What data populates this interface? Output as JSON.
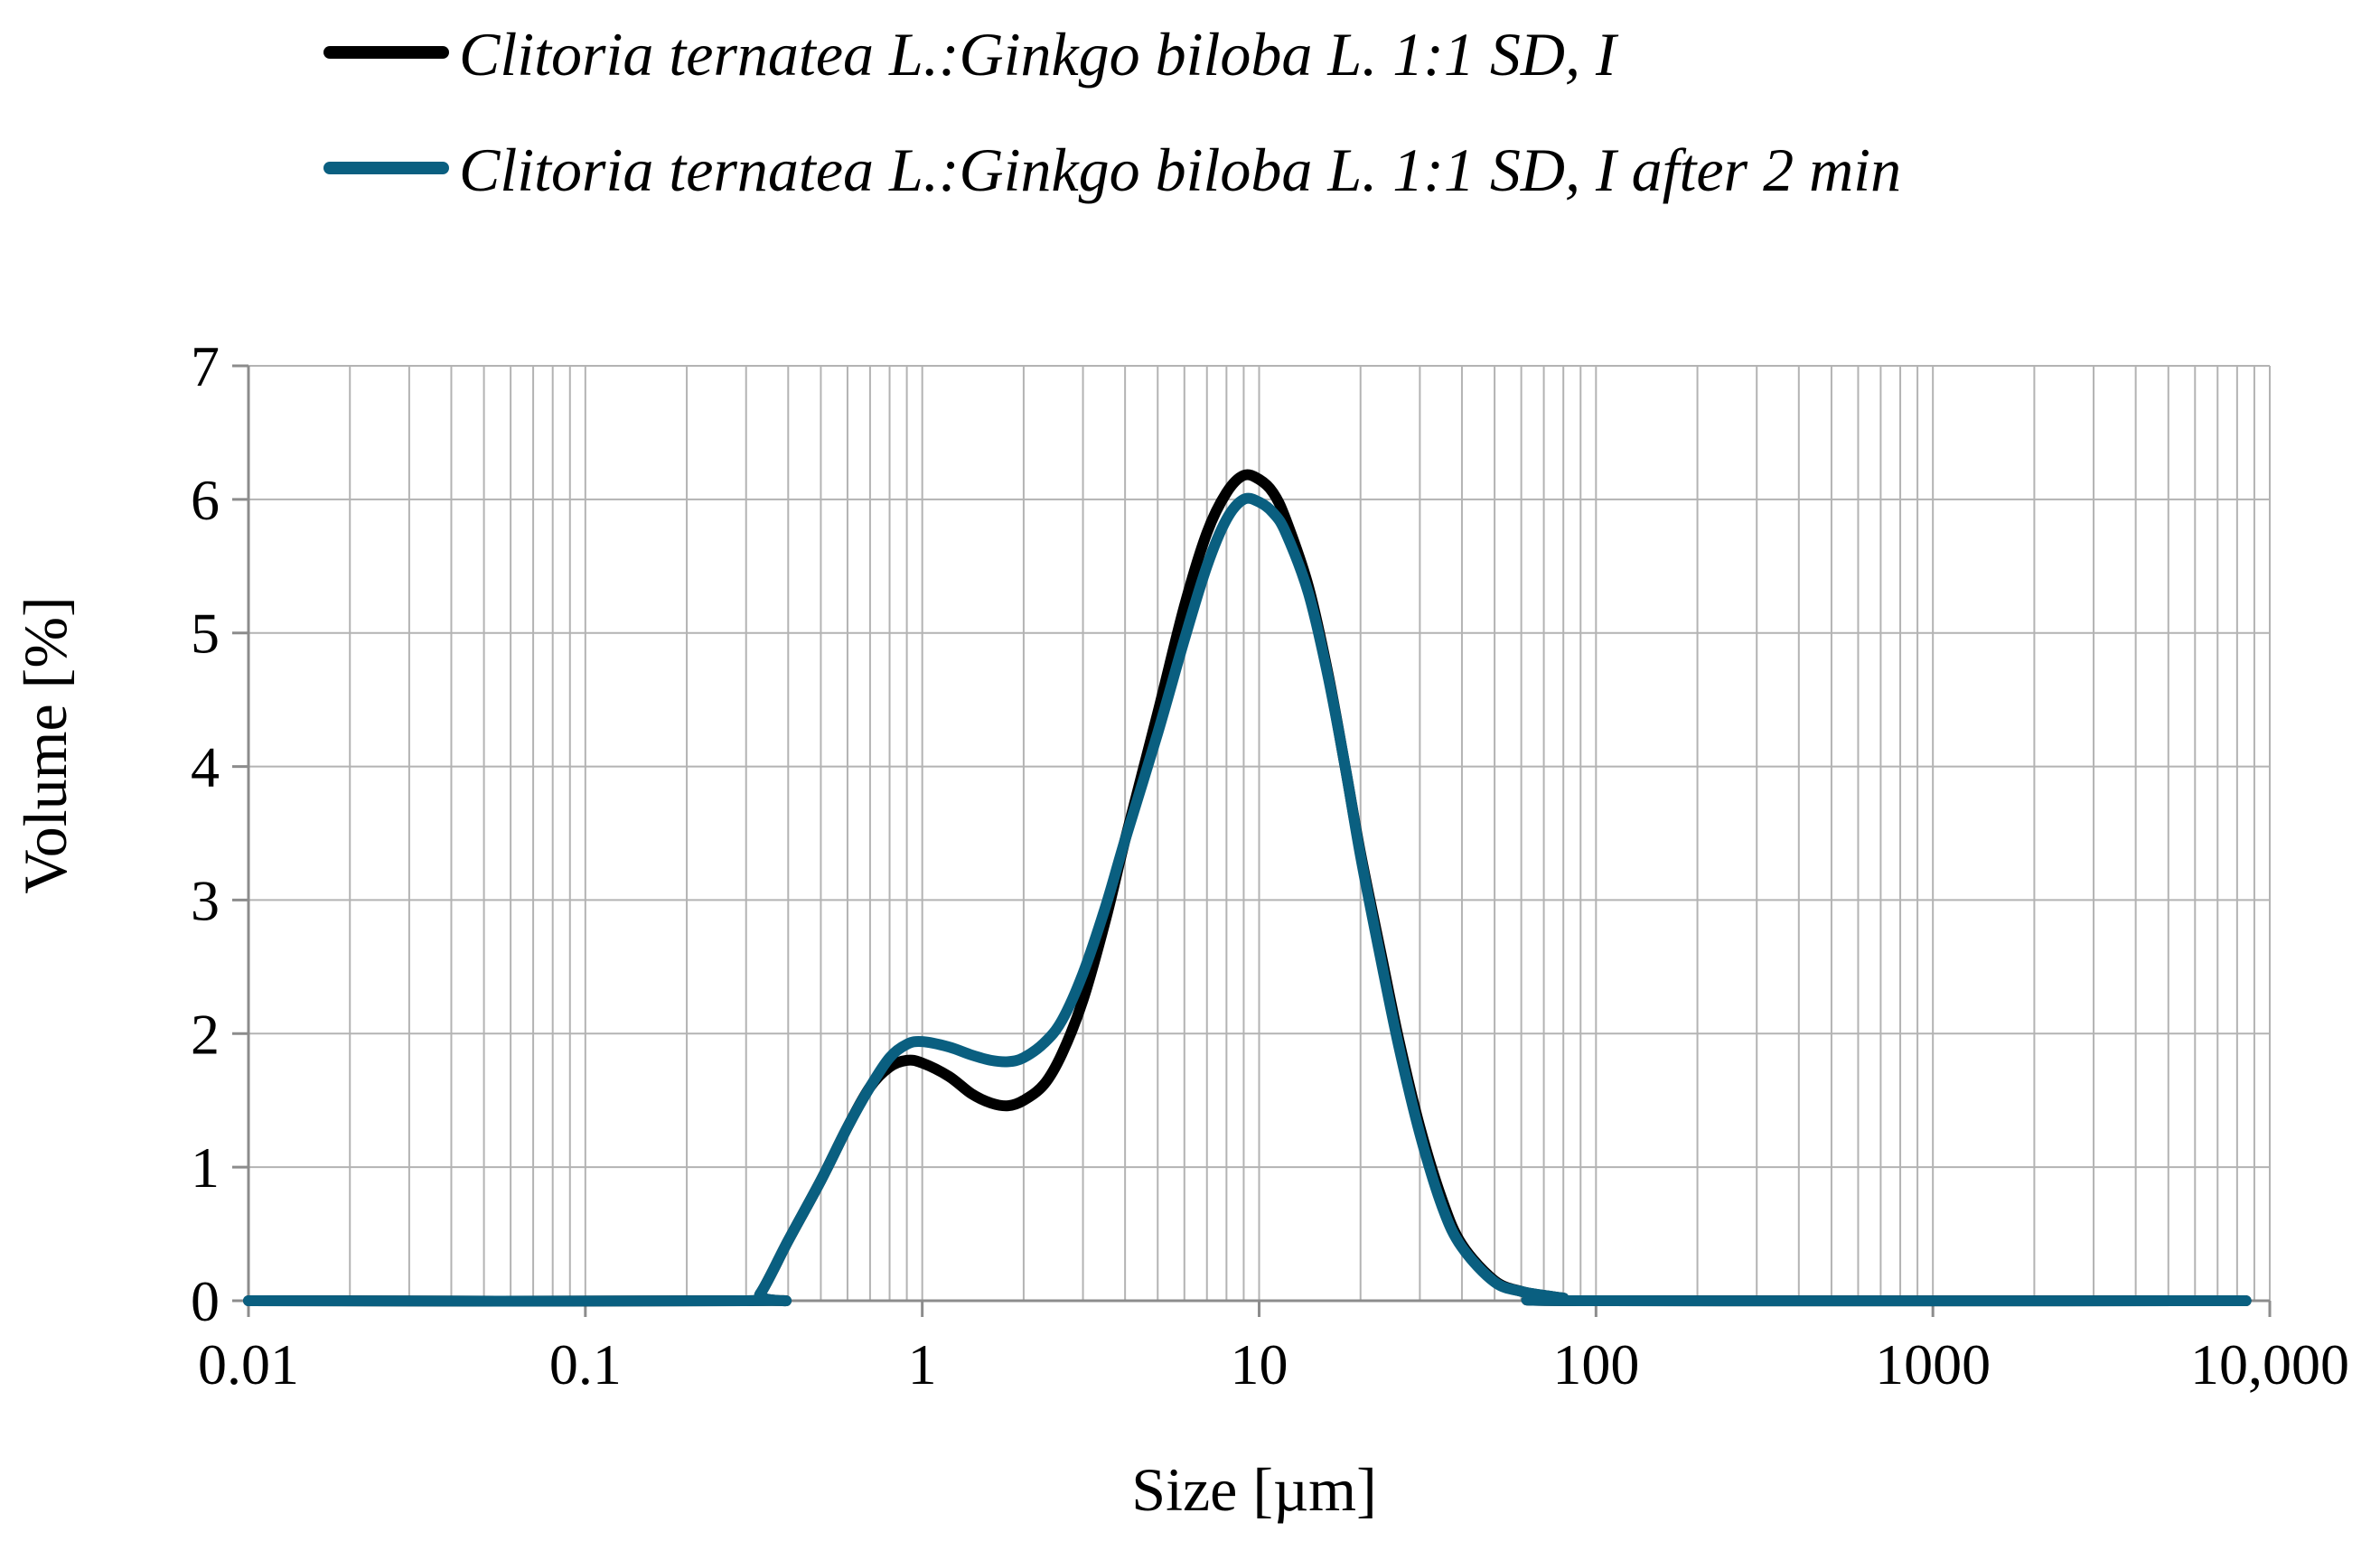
{
  "chart_data": {
    "type": "line",
    "title": "",
    "xlabel": "Size [µm]",
    "ylabel": "Volume [%]",
    "xscale": "log",
    "xlim": [
      0.01,
      10000
    ],
    "ylim": [
      0,
      7
    ],
    "grid": true,
    "legend_position": "top",
    "x_ticks": [
      {
        "value": 0.01,
        "label": "0.01"
      },
      {
        "value": 0.1,
        "label": "0.1"
      },
      {
        "value": 1,
        "label": "1"
      },
      {
        "value": 10,
        "label": "10"
      },
      {
        "value": 100,
        "label": "100"
      },
      {
        "value": 1000,
        "label": "1000"
      },
      {
        "value": 10000,
        "label": "10,000"
      }
    ],
    "y_ticks": [
      {
        "value": 0,
        "label": "0"
      },
      {
        "value": 1,
        "label": "1"
      },
      {
        "value": 2,
        "label": "2"
      },
      {
        "value": 3,
        "label": "3"
      },
      {
        "value": 4,
        "label": "4"
      },
      {
        "value": 5,
        "label": "5"
      },
      {
        "value": 6,
        "label": "6"
      },
      {
        "value": 7,
        "label": "7"
      }
    ],
    "series": [
      {
        "name": "Clitoria ternatea L.:Ginkgo biloba L. 1:1 SD, I",
        "color": "#000000",
        "points": [
          [
            0.01,
            0
          ],
          [
            0.3,
            0
          ],
          [
            0.33,
            0.05
          ],
          [
            0.4,
            0.45
          ],
          [
            0.5,
            0.9
          ],
          [
            0.6,
            1.3
          ],
          [
            0.7,
            1.6
          ],
          [
            0.8,
            1.75
          ],
          [
            0.9,
            1.8
          ],
          [
            1.0,
            1.78
          ],
          [
            1.2,
            1.68
          ],
          [
            1.4,
            1.55
          ],
          [
            1.6,
            1.48
          ],
          [
            1.8,
            1.46
          ],
          [
            2.0,
            1.5
          ],
          [
            2.3,
            1.62
          ],
          [
            2.6,
            1.85
          ],
          [
            3.0,
            2.25
          ],
          [
            3.5,
            2.85
          ],
          [
            4.0,
            3.45
          ],
          [
            5.0,
            4.4
          ],
          [
            6.0,
            5.2
          ],
          [
            7.0,
            5.75
          ],
          [
            8.0,
            6.05
          ],
          [
            9.0,
            6.18
          ],
          [
            10.0,
            6.15
          ],
          [
            11.0,
            6.05
          ],
          [
            12.0,
            5.85
          ],
          [
            14.0,
            5.35
          ],
          [
            16.0,
            4.7
          ],
          [
            18.0,
            4.0
          ],
          [
            20.0,
            3.35
          ],
          [
            23.0,
            2.6
          ],
          [
            26.0,
            1.95
          ],
          [
            30.0,
            1.3
          ],
          [
            35.0,
            0.75
          ],
          [
            40.0,
            0.42
          ],
          [
            50.0,
            0.15
          ],
          [
            60.0,
            0.07
          ],
          [
            70.0,
            0.04
          ],
          [
            80.0,
            0.02
          ],
          [
            90.0,
            0
          ],
          [
            8500,
            0
          ]
        ]
      },
      {
        "name": "Clitoria ternatea L.:Ginkgo biloba L. 1:1 SD, I after 2 min",
        "color": "#0a5f80",
        "points": [
          [
            0.01,
            0
          ],
          [
            0.3,
            0
          ],
          [
            0.33,
            0.05
          ],
          [
            0.4,
            0.45
          ],
          [
            0.5,
            0.9
          ],
          [
            0.6,
            1.3
          ],
          [
            0.7,
            1.6
          ],
          [
            0.8,
            1.82
          ],
          [
            0.9,
            1.92
          ],
          [
            1.0,
            1.94
          ],
          [
            1.2,
            1.9
          ],
          [
            1.4,
            1.84
          ],
          [
            1.6,
            1.8
          ],
          [
            1.8,
            1.79
          ],
          [
            2.0,
            1.82
          ],
          [
            2.3,
            1.93
          ],
          [
            2.6,
            2.1
          ],
          [
            3.0,
            2.45
          ],
          [
            3.5,
            2.95
          ],
          [
            4.0,
            3.45
          ],
          [
            5.0,
            4.25
          ],
          [
            6.0,
            4.95
          ],
          [
            7.0,
            5.5
          ],
          [
            8.0,
            5.85
          ],
          [
            9.0,
            6.0
          ],
          [
            10.0,
            5.98
          ],
          [
            11.0,
            5.9
          ],
          [
            12.0,
            5.75
          ],
          [
            14.0,
            5.3
          ],
          [
            16.0,
            4.68
          ],
          [
            18.0,
            4.0
          ],
          [
            20.0,
            3.33
          ],
          [
            23.0,
            2.55
          ],
          [
            26.0,
            1.9
          ],
          [
            30.0,
            1.25
          ],
          [
            35.0,
            0.7
          ],
          [
            40.0,
            0.4
          ],
          [
            50.0,
            0.14
          ],
          [
            60.0,
            0.07
          ],
          [
            70.0,
            0.04
          ],
          [
            80.0,
            0.02
          ],
          [
            90.0,
            0
          ],
          [
            8500,
            0
          ]
        ]
      }
    ]
  }
}
